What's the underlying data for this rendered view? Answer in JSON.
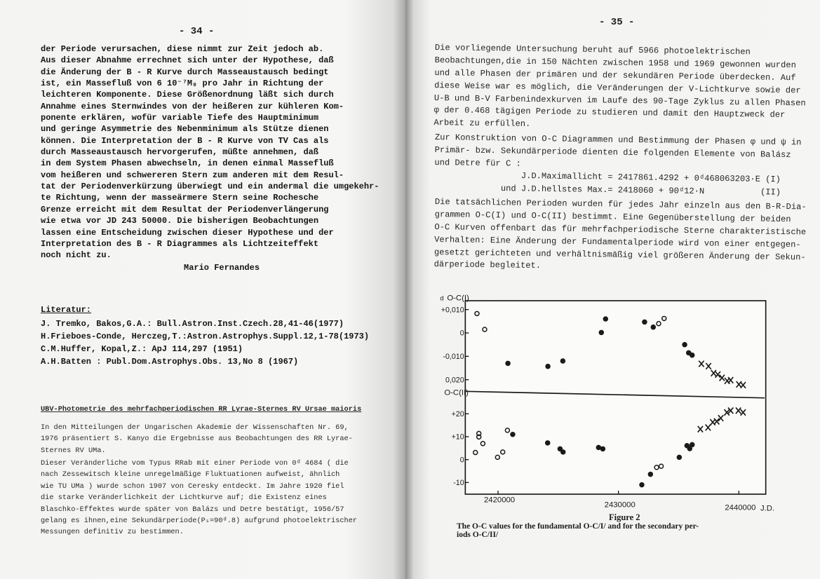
{
  "left_page": {
    "page_number": "- 34 -",
    "paragraph": [
      "der Periode verursachen, diese nimmt zur Zeit jedoch ab.",
      "Aus dieser Abnahme errechnet sich unter der Hypothese, daß",
      "die Änderung der B - R Kurve durch Masseaustausch bedingt",
      "ist, ein Massefluß von 6 10⁻⁷M₀ pro Jahr in Richtung der",
      "leichteren Komponente. Diese Größenordnung läßt sich durch",
      "Annahme eines Sternwindes von der heißeren zur kühleren Kom-",
      "ponente erklären, wofür variable Tiefe des Hauptminimum",
      "und geringe Asymmetrie des Nebenminimum als Stütze dienen",
      "können. Die Interpretation der B - R Kurve von TV Cas als",
      "durch Masseaustausch hervorgerufen, müßte annehmen, daß",
      "in dem System Phasen abwechseln, in denen einmal Massefluß",
      "vom heißeren und schwereren Stern zum anderen mit dem Resul-",
      "tat der Periodenverkürzung überwiegt und ein andermal die umgekehr-",
      "te Richtung, wenn der masseärmere Stern seine Rochesche",
      "Grenze erreicht mit dem Resultat der Periodenverlängerung",
      "wie etwa vor JD 243 50000. Die bisherigen Beobachtungen",
      "lassen eine Entscheidung zwischen dieser Hypothese und der",
      "Interpretation des B - R Diagrammes als Lichtzeiteffekt",
      "noch nicht zu."
    ],
    "author": "Mario Fernandes",
    "literature_heading": "Literatur:",
    "references": [
      "J. Tremko, Bakos,G.A.: Bull.Astron.Inst.Czech.28,41-46(1977)",
      "H.Frieboes-Conde, Herczeg,T.:Astron.Astrophys.Suppl.12,1-78(1973)",
      "C.M.Huffer, Kopal,Z.: ApJ 114,297 (1951)",
      "A.H.Batten : Publ.Dom.Astrophys.Obs. 13,No 8 (1967)"
    ],
    "section_heading": "UBV-Photometrie des mehrfachperiodischen RR Lyrae-Sternes RV Ursae maioris",
    "section_para1": [
      "In den Mitteilungen der Ungarischen Akademie der Wissenschaften Nr. 69,",
      "1976 präsentiert S. Kanyo die Ergebnisse aus Beobachtungen des RR Lyrae-",
      "Sternes RV UMa."
    ],
    "section_para2": [
      "Dieser Veränderliche vom Typus RRab mit einer Periode von 0ᵈ 4684 ( die",
      "nach Zessewitsch kleine unregelmäßige Fluktuationen aufweist, ähnlich",
      "wie TU UMa ) wurde schon 1907 von Ceresky entdeckt. Im Jahre 1920 fiel",
      "die starke Veränderlichkeit der Lichtkurve auf; die Existenz eines",
      "Blaschko-Effektes wurde später von Balázs und Detre bestätigt, 1956/57",
      "gelang es ihnen,eine Sekundärperiode(Pₛ=90ᵈ.8) aufgrund photoelektrischer",
      "Messungen definitiv zu bestimmen."
    ]
  },
  "right_page": {
    "page_number": "- 35 -",
    "paragraph1": [
      "Die vorliegende Untersuchung beruht auf 5966 photoelektrischen",
      "Beobachtungen,die in 150 Nächten zwischen 1958 und 1969 gewonnen wurden",
      "und alle Phasen der primären und der sekundären Periode überdecken. Auf",
      "diese Weise war es möglich, die Veränderungen der V-Lichtkurve sowie der",
      "U-B und B-V Farbenindexkurven im Laufe des 90-Tage Zyklus zu allen Phasen",
      "φ der 0.468 tägigen Periode zu studieren und damit den Hauptzweck der",
      "Arbeit zu erfüllen."
    ],
    "paragraph2_intro": [
      "Zur Konstruktion von O-C Diagrammen und Bestimmung der Phasen φ und ψ in",
      "Primär- bzw. Sekundärperiode dienten die folgenden Elemente von Balász",
      "und Detre für C :"
    ],
    "formula1": "J.D.Maximallicht = 2417861.4292 + 0ᵈ468063203·E (I)",
    "formula2": "und J.D.hellstes Max.= 2418060 + 90ᵈ12·N           (II)",
    "paragraph2_rest": [
      "Die tatsächlichen Perioden wurden für jedes Jahr einzeln aus den B-R-Dia-",
      "grammen O-C(I) und O-C(II) bestimmt. Eine Gegenüberstellung der beiden",
      "O-C Kurven offenbart das für mehrfachperiodische Sterne charakteristische",
      "Verhalten: Eine Änderung der Fundamentalperiode wird von einer entgegen-",
      "gesetzt gerichteten und verhältnismäßig viel größeren Änderung der Sekun-",
      "därperiode begleitet."
    ],
    "figure_label": "Figure 2",
    "figure_caption": [
      "The O-C values for the fundamental O-C/I/ and for the secondary per-",
      "iods O-C/II/"
    ]
  },
  "chart_data": {
    "type": "scatter",
    "xlabel": "J.D.",
    "x_ticks": [
      "2420000",
      "2430000",
      "2440000"
    ],
    "xlim": [
      2417300,
      2442200
    ],
    "ink_color": "#1a1a1a",
    "panels": [
      {
        "ylabel": "O-C(I)",
        "unit": "d",
        "y_ticks": [
          "+0,010",
          "0",
          "-0,010",
          "0,020"
        ],
        "y_tick_values": [
          0.01,
          0,
          -0.01,
          -0.02
        ],
        "ylim": [
          -0.026,
          0.014
        ],
        "series": [
          {
            "marker": "open",
            "x": [
              2418250,
              2418890,
              2433340,
              2433790
            ],
            "y": [
              0.0083,
              0.0015,
              0.004,
              0.0062
            ]
          },
          {
            "marker": "filled",
            "x": [
              2420820,
              2424140,
              2425380,
              2428580,
              2428930,
              2432170,
              2432890,
              2435500,
              2435830,
              2436120
            ],
            "y": [
              -0.013,
              -0.0143,
              -0.012,
              0.0002,
              0.006,
              0.0047,
              0.0025,
              -0.005,
              -0.0085,
              -0.0095
            ]
          },
          {
            "marker": "cross",
            "x": [
              2436890,
              2437480,
              2437900,
              2438250,
              2438600,
              2439030,
              2439320,
              2440000,
              2440350
            ],
            "y": [
              -0.0132,
              -0.0142,
              -0.0172,
              -0.0178,
              -0.0192,
              -0.0205,
              -0.0202,
              -0.022,
              -0.0223
            ]
          }
        ]
      },
      {
        "ylabel": "O-C(II)",
        "y_ticks": [
          "+20",
          "+10",
          "0",
          "-10"
        ],
        "y_tick_values": [
          20,
          10,
          0,
          -10
        ],
        "ylim": [
          -15,
          28.5
        ],
        "series": [
          {
            "marker": "open",
            "x": [
              2418120,
              2418410,
              2418410,
              2418740,
              2419960,
              2420390,
              2420780,
              2433170,
              2433550
            ],
            "y": [
              3.1,
              11.4,
              9.9,
              7.0,
              1.0,
              3.3,
              12.8,
              -3.4,
              -2.9
            ]
          },
          {
            "marker": "filled",
            "x": [
              2421220,
              2424120,
              2425150,
              2425400,
              2428350,
              2428700,
              2431940,
              2432660,
              2435050,
              2435690,
              2435920,
              2436120
            ],
            "y": [
              11.0,
              7.3,
              4.7,
              3.3,
              5.3,
              4.7,
              -11.0,
              -6.4,
              1.0,
              6.1,
              4.8,
              6.5
            ]
          },
          {
            "marker": "cross",
            "x": [
              2436800,
              2437440,
              2437830,
              2438160,
              2438500,
              2439000,
              2439320,
              2439960,
              2440350
            ],
            "y": [
              13.3,
              14.0,
              16.3,
              16.7,
              18.1,
              20.6,
              21.4,
              21.4,
              20.6
            ]
          }
        ]
      }
    ]
  }
}
